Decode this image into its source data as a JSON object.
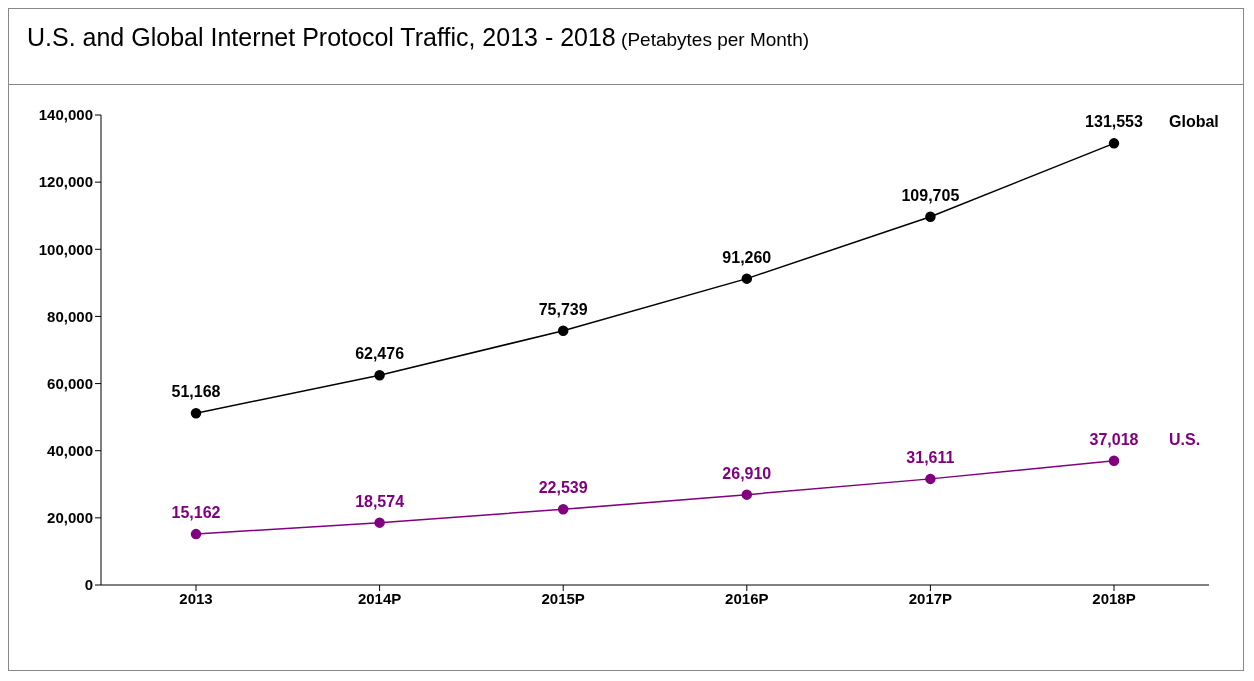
{
  "chart_data": {
    "type": "line",
    "title": "U.S. and Global Internet Protocol Traffic, 2013 - 2018",
    "subtitle": "(Petabytes per Month)",
    "categories": [
      "2013",
      "2014P",
      "2015P",
      "2016P",
      "2017P",
      "2018P"
    ],
    "series": [
      {
        "name": "Global",
        "color": "#000000",
        "values": [
          51168,
          62476,
          75739,
          91260,
          109705,
          131553
        ],
        "value_labels": [
          "51,168",
          "62,476",
          "75,739",
          "91,260",
          "109,705",
          "131,553"
        ]
      },
      {
        "name": "U.S.",
        "color": "#800080",
        "values": [
          15162,
          18574,
          22539,
          26910,
          31611,
          37018
        ],
        "value_labels": [
          "15,162",
          "18,574",
          "22,539",
          "26,910",
          "31,611",
          "37,018"
        ]
      }
    ],
    "ylim": [
      0,
      140000
    ],
    "yticks": [
      0,
      {
        "value": 20000,
        "label": "20,000"
      },
      {
        "value": 40000,
        "label": "40,000"
      },
      {
        "value": 60000,
        "label": "60,000"
      },
      {
        "value": 80000,
        "label": "80,000"
      },
      {
        "value": 100000,
        "label": "100,000"
      },
      {
        "value": 120000,
        "label": "120,000"
      },
      {
        "value": 140000,
        "label": "140,000"
      }
    ],
    "marker": "circle",
    "line_style": "solid"
  }
}
